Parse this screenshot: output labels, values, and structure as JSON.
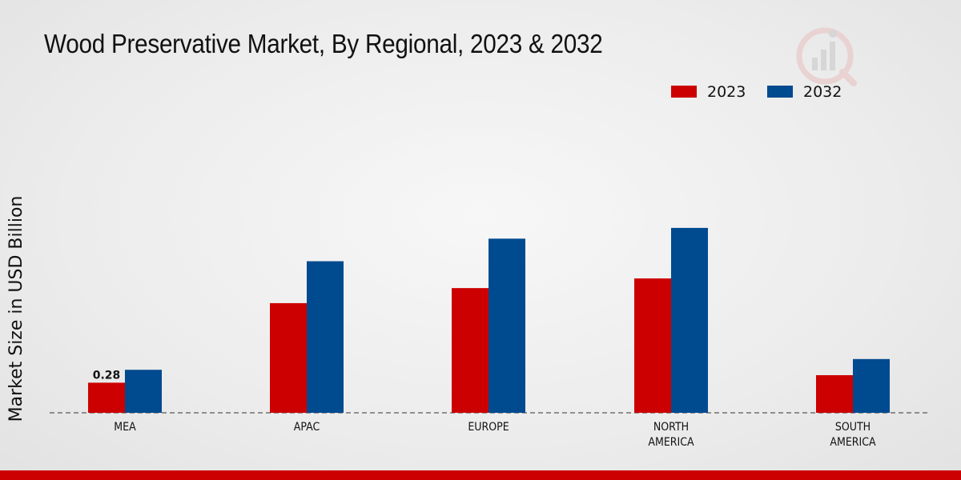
{
  "chart_data": {
    "type": "bar",
    "title": "Wood Preservative Market, By Regional, 2023 & 2032",
    "ylabel": "Market Size in USD Billion",
    "xlabel": "",
    "categories": [
      "MEA",
      "APAC",
      "EUROPE",
      "NORTH\nAMERICA",
      "SOUTH\nAMERICA"
    ],
    "series": [
      {
        "name": "2023",
        "color": "#cc0000",
        "values": [
          0.28,
          1.02,
          1.16,
          1.25,
          0.35
        ]
      },
      {
        "name": "2032",
        "color": "#004a8f",
        "values": [
          0.4,
          1.41,
          1.62,
          1.72,
          0.5
        ]
      }
    ],
    "data_labels": [
      {
        "series": 0,
        "index": 0,
        "text": "0.28"
      }
    ],
    "ylim": [
      0,
      3.2
    ],
    "grid": false,
    "legend_position": "top-right",
    "baseline_style": "dashed"
  }
}
